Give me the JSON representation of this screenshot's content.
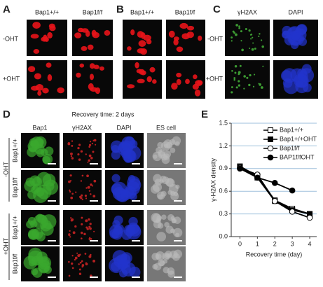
{
  "panels": {
    "A": {
      "label": "A",
      "columns": [
        "Bap1+/+",
        "Bap1f/f"
      ],
      "rows": [
        "-OHT",
        "+OHT"
      ]
    },
    "B": {
      "label": "B",
      "columns": [
        "Bap1+/+",
        "Bap1f/f"
      ]
    },
    "C": {
      "label": "C",
      "columns": [
        "γH2AX",
        "DAPI"
      ],
      "rows": [
        "-OHT",
        "+OHT"
      ]
    },
    "D": {
      "label": "D",
      "subtitle": "Recovery time: 2 days",
      "columns": [
        "Bap1",
        "γH2AX",
        "DAPI",
        "ES cell"
      ],
      "groups": [
        "-OHT",
        "+OHT"
      ],
      "rows": [
        "Bap1+/+",
        "Bap1f/f",
        "Bap1+/+",
        "Bap1f/f"
      ]
    },
    "E": {
      "label": "E"
    }
  },
  "chart_data": {
    "type": "line",
    "x": [
      0,
      1,
      2,
      3,
      4
    ],
    "xlim": [
      -0.5,
      4.4
    ],
    "xticks": [
      0,
      1,
      2,
      3,
      4
    ],
    "ylim": [
      0,
      1.5
    ],
    "yticks": [
      {
        "value": 0,
        "label": "0.0"
      },
      0.3,
      0.6,
      0.9,
      1.2,
      1.5
    ],
    "xlabel": "Recovery time (day)",
    "ylabel": "γ-H2AX density",
    "grid": true,
    "grid_color": "#9dbfdc",
    "series": [
      {
        "name": "Bap1+/+",
        "color": "#000000",
        "marker": "square",
        "filled": false,
        "values": [
          0.93,
          0.8,
          0.48,
          0.37,
          0.3
        ]
      },
      {
        "name": "Bap1+/+OHT",
        "color": "#000000",
        "marker": "square",
        "filled": true,
        "values": [
          0.92,
          0.78,
          0.47,
          0.35,
          0.3
        ]
      },
      {
        "name": "Bap1f/f",
        "color": "#000000",
        "marker": "circle",
        "filled": false,
        "values": [
          0.91,
          0.82,
          0.47,
          0.33,
          0.25
        ]
      },
      {
        "name": "BAP1f/fOHT",
        "color": "#000000",
        "marker": "circle",
        "filled": true,
        "values": [
          0.9,
          0.78,
          0.71,
          0.61,
          null
        ]
      }
    ]
  }
}
